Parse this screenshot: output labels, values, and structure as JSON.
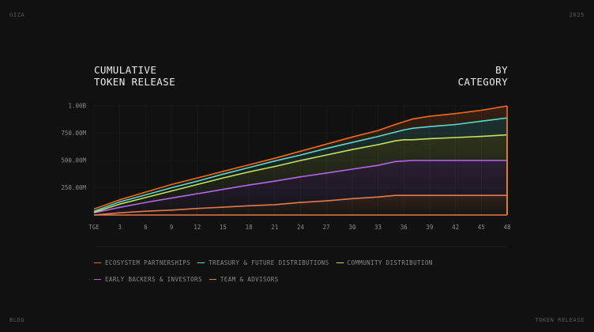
{
  "corners": {
    "top_left": "GIZA",
    "top_right": "2025",
    "bottom_left": "BLOG",
    "bottom_right": "TOKEN RELEASE"
  },
  "header": {
    "title_line1": "CUMULATIVE",
    "title_line2": "TOKEN RELEASE",
    "right_line1": "BY",
    "right_line2": "CATEGORY"
  },
  "colors": {
    "background": "#111111",
    "grid": "#1f1f1f",
    "axis_text": "#8a8a8a"
  },
  "chart_data": {
    "type": "area",
    "stacked": true,
    "x": [
      0,
      3,
      6,
      9,
      12,
      15,
      18,
      21,
      24,
      27,
      30,
      33,
      35,
      36,
      37,
      39,
      42,
      45,
      48
    ],
    "x_ticks": [
      "TGE",
      "3",
      "6",
      "9",
      "12",
      "15",
      "18",
      "21",
      "24",
      "27",
      "30",
      "33",
      "36",
      "39",
      "42",
      "45",
      "48"
    ],
    "x_tick_values": [
      0,
      3,
      6,
      9,
      12,
      15,
      18,
      21,
      24,
      27,
      30,
      33,
      36,
      39,
      42,
      45,
      48
    ],
    "y_ticks": [
      "250.00M",
      "500.00M",
      "750.00M",
      "1.00B"
    ],
    "y_tick_values": [
      250,
      500,
      750,
      1000
    ],
    "ylim": [
      0,
      1000
    ],
    "grid": true,
    "legend_position": "bottom-left",
    "series": [
      {
        "name": "TEAM & ADVISORS",
        "color": "#e07b4f",
        "values": [
          0,
          20,
          35,
          45,
          60,
          72,
          85,
          95,
          115,
          130,
          150,
          165,
          180,
          180,
          180,
          180,
          180,
          180,
          180
        ]
      },
      {
        "name": "EARLY BACKERS & INVESTORS",
        "color": "#b367e8",
        "values": [
          20,
          70,
          115,
          155,
          195,
          235,
          275,
          310,
          350,
          385,
          420,
          455,
          490,
          495,
          500,
          500,
          500,
          500,
          500
        ]
      },
      {
        "name": "COMMUNITY DISTRIBUTION",
        "color": "#c2e35a",
        "values": [
          25,
          100,
          160,
          220,
          280,
          340,
          395,
          445,
          500,
          550,
          600,
          645,
          680,
          690,
          690,
          700,
          710,
          720,
          735
        ]
      },
      {
        "name": "TREASURY & FUTURE DISTRIBUTIONS",
        "color": "#59d9d0",
        "values": [
          35,
          120,
          185,
          250,
          310,
          375,
          435,
          495,
          550,
          610,
          665,
          720,
          760,
          780,
          795,
          810,
          830,
          860,
          890
        ]
      },
      {
        "name": "ECOSYSTEM PARTNERSHIPS",
        "color": "#f06a1d",
        "values": [
          55,
          140,
          210,
          280,
          340,
          400,
          460,
          520,
          585,
          650,
          715,
          775,
          830,
          855,
          880,
          905,
          930,
          960,
          1000
        ]
      }
    ]
  },
  "legend": {
    "row1": [
      {
        "label": "ECOSYSTEM PARTNERSHIPS",
        "color": "#f06a1d"
      },
      {
        "label": "TREASURY & FUTURE DISTRIBUTIONS",
        "color": "#59d9d0"
      },
      {
        "label": "COMMUNITY DISTRIBUTION",
        "color": "#c2e35a"
      }
    ],
    "row2": [
      {
        "label": "EARLY BACKERS & INVESTORS",
        "color": "#b367e8"
      },
      {
        "label": "TEAM & ADVISORS",
        "color": "#e07b4f"
      }
    ]
  }
}
